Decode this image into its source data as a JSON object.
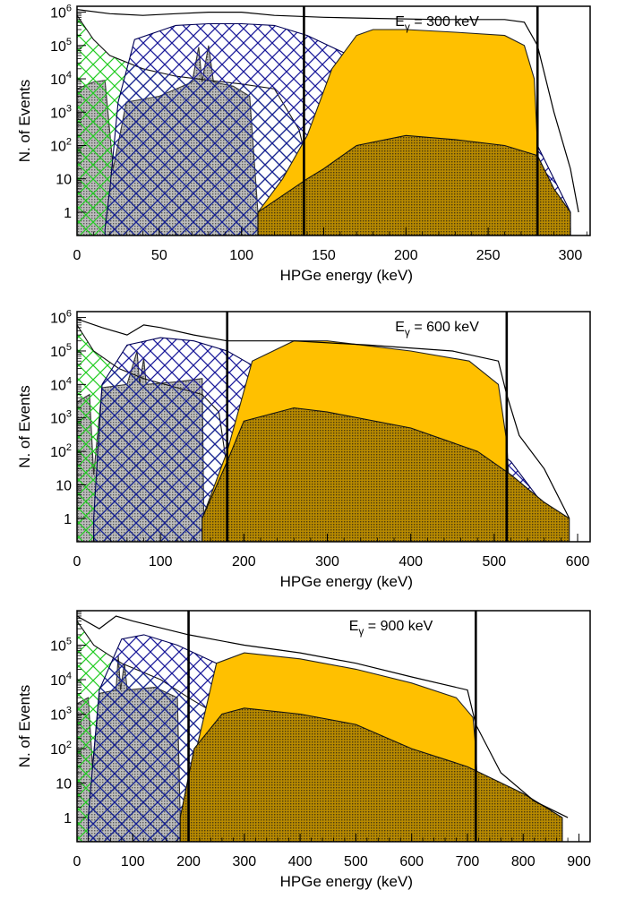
{
  "chart_data": [
    {
      "type": "area",
      "annotation": "E",
      "annotation_sub": "γ",
      "annotation_value": " = 300 keV",
      "xlabel": "HPGe energy (keV)",
      "ylabel": "N. of Events",
      "xlim": [
        0,
        312
      ],
      "ylog": true,
      "ylim": [
        0.2,
        1500000
      ],
      "x_ticks": [
        0,
        50,
        100,
        150,
        200,
        250,
        300
      ],
      "y_ticks": [
        1,
        10,
        100,
        1000,
        10000,
        100000,
        1000000
      ],
      "y_tick_labels": [
        {
          "base": "1",
          "exp": ""
        },
        {
          "base": "10",
          "exp": ""
        },
        {
          "base": "10",
          "exp": "2"
        },
        {
          "base": "10",
          "exp": "3"
        },
        {
          "base": "10",
          "exp": "4"
        },
        {
          "base": "10",
          "exp": "5"
        },
        {
          "base": "10",
          "exp": "6"
        }
      ],
      "vertical_lines": [
        138,
        280
      ],
      "series": [
        {
          "values": [
            [
              0,
              5000
            ],
            [
              10,
              8000
            ],
            [
              17,
              9000
            ],
            [
              22,
              20
            ],
            [
              30,
              2000
            ],
            [
              50,
              3000
            ],
            [
              70,
              8000
            ],
            [
              74,
              90000
            ],
            [
              76,
              8000
            ],
            [
              80,
              100000
            ],
            [
              83,
              8000
            ],
            [
              95,
              6000
            ],
            [
              105,
              3000
            ],
            [
              110,
              1
            ]
          ],
          "color": "#8c8c8c",
          "hatch": "dots"
        },
        {
          "values": [
            [
              0,
              800000
            ],
            [
              10,
              150000
            ],
            [
              20,
              50000
            ],
            [
              40,
              20000
            ],
            [
              60,
              12000
            ],
            [
              80,
              9000
            ],
            [
              100,
              7000
            ],
            [
              120,
              5000
            ],
            [
              135,
              300
            ],
            [
              140,
              30
            ],
            [
              160,
              5
            ],
            [
              200,
              5
            ],
            [
              240,
              3
            ],
            [
              270,
              2
            ],
            [
              290,
              1
            ]
          ],
          "color": "#22cc22",
          "hatch": "cross"
        },
        {
          "values": [
            [
              17,
              0.3
            ],
            [
              20,
              5
            ],
            [
              25,
              2000
            ],
            [
              35,
              150000
            ],
            [
              60,
              400000
            ],
            [
              80,
              450000
            ],
            [
              100,
              450000
            ],
            [
              120,
              400000
            ],
            [
              140,
              200000
            ],
            [
              170,
              40000
            ],
            [
              200,
              15000
            ],
            [
              240,
              5000
            ],
            [
              270,
              1000
            ],
            [
              280,
              100
            ],
            [
              290,
              10
            ],
            [
              300,
              1
            ]
          ],
          "color": "#1a1a9a",
          "hatch": "cross"
        },
        {
          "values": [
            [
              110,
              1
            ],
            [
              125,
              10
            ],
            [
              140,
              200
            ],
            [
              155,
              20000
            ],
            [
              170,
              200000
            ],
            [
              180,
              300000
            ],
            [
              200,
              300000
            ],
            [
              230,
              250000
            ],
            [
              260,
              200000
            ],
            [
              272,
              100000
            ],
            [
              278,
              10000
            ],
            [
              282,
              1
            ]
          ],
          "color": "#ffc000",
          "hatch": "none"
        },
        {
          "values": [
            [
              110,
              1
            ],
            [
              140,
              10
            ],
            [
              150,
              20
            ],
            [
              170,
              100
            ],
            [
              200,
              200
            ],
            [
              230,
              150
            ],
            [
              260,
              100
            ],
            [
              280,
              50
            ],
            [
              290,
              5
            ],
            [
              300,
              1
            ]
          ],
          "color": "#8a6a00",
          "hatch": "dots"
        }
      ],
      "total_envelope": [
        [
          0,
          1200000
        ],
        [
          20,
          900000
        ],
        [
          40,
          800000
        ],
        [
          60,
          900000
        ],
        [
          80,
          1000000
        ],
        [
          100,
          1000000
        ],
        [
          120,
          800000
        ],
        [
          150,
          700000
        ],
        [
          180,
          650000
        ],
        [
          220,
          600000
        ],
        [
          260,
          600000
        ],
        [
          272,
          500000
        ],
        [
          280,
          100000
        ],
        [
          290,
          1000
        ],
        [
          300,
          20
        ],
        [
          305,
          1
        ]
      ]
    },
    {
      "type": "area",
      "annotation": "E",
      "annotation_sub": "γ",
      "annotation_value": " = 600 keV",
      "xlabel": "HPGe energy (keV)",
      "ylabel": "N. of Events",
      "xlim": [
        0,
        615
      ],
      "ylog": true,
      "ylim": [
        0.2,
        1500000
      ],
      "x_ticks": [
        0,
        100,
        200,
        300,
        400,
        500,
        600
      ],
      "y_ticks": [
        1,
        10,
        100,
        1000,
        10000,
        100000,
        1000000
      ],
      "y_tick_labels": [
        {
          "base": "1",
          "exp": ""
        },
        {
          "base": "10",
          "exp": ""
        },
        {
          "base": "10",
          "exp": "2"
        },
        {
          "base": "10",
          "exp": "3"
        },
        {
          "base": "10",
          "exp": "4"
        },
        {
          "base": "10",
          "exp": "5"
        },
        {
          "base": "10",
          "exp": "6"
        }
      ],
      "vertical_lines": [
        180,
        515
      ],
      "series": [
        {
          "values": [
            [
              0,
              3000
            ],
            [
              15,
              5000
            ],
            [
              20,
              20
            ],
            [
              30,
              8000
            ],
            [
              60,
              10000
            ],
            [
              72,
              100000
            ],
            [
              75,
              10000
            ],
            [
              80,
              60000
            ],
            [
              83,
              10000
            ],
            [
              120,
              12000
            ],
            [
              150,
              15000
            ],
            [
              152,
              1
            ]
          ],
          "color": "#8c8c8c",
          "hatch": "dots"
        },
        {
          "values": [
            [
              0,
              600000
            ],
            [
              20,
              100000
            ],
            [
              50,
              30000
            ],
            [
              80,
              15000
            ],
            [
              120,
              8000
            ],
            [
              150,
              5000
            ],
            [
              170,
              1500
            ],
            [
              180,
              30
            ],
            [
              200,
              5
            ],
            [
              300,
              3
            ],
            [
              500,
              1
            ]
          ],
          "color": "#22cc22",
          "hatch": "cross"
        },
        {
          "values": [
            [
              20,
              1
            ],
            [
              30,
              10000
            ],
            [
              60,
              150000
            ],
            [
              100,
              250000
            ],
            [
              140,
              200000
            ],
            [
              180,
              100000
            ],
            [
              250,
              10000
            ],
            [
              300,
              4000
            ],
            [
              400,
              1000
            ],
            [
              480,
              300
            ],
            [
              520,
              50
            ],
            [
              550,
              5
            ],
            [
              570,
              1
            ]
          ],
          "color": "#1a1a9a",
          "hatch": "cross"
        },
        {
          "values": [
            [
              150,
              1
            ],
            [
              180,
              100
            ],
            [
              210,
              50000
            ],
            [
              260,
              200000
            ],
            [
              300,
              200000
            ],
            [
              400,
              100000
            ],
            [
              470,
              50000
            ],
            [
              505,
              10000
            ],
            [
              515,
              200
            ],
            [
              520,
              1
            ]
          ],
          "color": "#ffc000",
          "hatch": "none"
        },
        {
          "values": [
            [
              150,
              1
            ],
            [
              180,
              50
            ],
            [
              200,
              800
            ],
            [
              260,
              2000
            ],
            [
              300,
              1500
            ],
            [
              400,
              500
            ],
            [
              480,
              100
            ],
            [
              520,
              20
            ],
            [
              560,
              3
            ],
            [
              590,
              1
            ]
          ],
          "color": "#8a6a00",
          "hatch": "dots"
        }
      ],
      "total_envelope": [
        [
          0,
          900000
        ],
        [
          30,
          500000
        ],
        [
          60,
          300000
        ],
        [
          80,
          600000
        ],
        [
          100,
          500000
        ],
        [
          140,
          300000
        ],
        [
          180,
          200000
        ],
        [
          260,
          200000
        ],
        [
          350,
          150000
        ],
        [
          450,
          100000
        ],
        [
          505,
          50000
        ],
        [
          515,
          5000
        ],
        [
          530,
          300
        ],
        [
          560,
          30
        ],
        [
          590,
          1
        ]
      ]
    },
    {
      "type": "area",
      "annotation": "E",
      "annotation_sub": "γ",
      "annotation_value": " = 900 keV",
      "xlabel": "HPGe energy (keV)",
      "ylabel": "N. of Events",
      "xlim": [
        0,
        920
      ],
      "ylog": true,
      "ylim": [
        0.2,
        1000000
      ],
      "x_ticks": [
        0,
        100,
        200,
        300,
        400,
        500,
        600,
        700,
        800,
        900
      ],
      "y_ticks": [
        1,
        10,
        100,
        1000,
        10000,
        100000
      ],
      "y_tick_labels": [
        {
          "base": "1",
          "exp": ""
        },
        {
          "base": "10",
          "exp": ""
        },
        {
          "base": "10",
          "exp": "2"
        },
        {
          "base": "10",
          "exp": "3"
        },
        {
          "base": "10",
          "exp": "4"
        },
        {
          "base": "10",
          "exp": "5"
        }
      ],
      "vertical_lines": [
        200,
        715
      ],
      "series": [
        {
          "values": [
            [
              0,
              2000
            ],
            [
              20,
              3000
            ],
            [
              28,
              30
            ],
            [
              40,
              4000
            ],
            [
              70,
              5000
            ],
            [
              74,
              50000
            ],
            [
              78,
              5000
            ],
            [
              85,
              30000
            ],
            [
              90,
              5000
            ],
            [
              140,
              6000
            ],
            [
              180,
              3000
            ],
            [
              185,
              1
            ]
          ],
          "color": "#8c8c8c",
          "hatch": "dots"
        },
        {
          "values": [
            [
              0,
              500000
            ],
            [
              30,
              100000
            ],
            [
              80,
              30000
            ],
            [
              150,
              10000
            ],
            [
              200,
              3000
            ],
            [
              260,
              800
            ],
            [
              300,
              300
            ],
            [
              400,
              100
            ],
            [
              600,
              10
            ],
            [
              800,
              1
            ]
          ],
          "color": "#22cc22",
          "hatch": "cross"
        },
        {
          "values": [
            [
              20,
              1
            ],
            [
              40,
              5000
            ],
            [
              80,
              150000
            ],
            [
              120,
              200000
            ],
            [
              180,
              100000
            ],
            [
              250,
              30000
            ],
            [
              350,
              5000
            ],
            [
              450,
              1000
            ],
            [
              550,
              300
            ],
            [
              650,
              50
            ],
            [
              720,
              10
            ],
            [
              780,
              1
            ]
          ],
          "color": "#1a1a9a",
          "hatch": "cross"
        },
        {
          "values": [
            [
              185,
              1
            ],
            [
              210,
              50
            ],
            [
              250,
              30000
            ],
            [
              300,
              60000
            ],
            [
              400,
              40000
            ],
            [
              500,
              20000
            ],
            [
              600,
              8000
            ],
            [
              680,
              3000
            ],
            [
              710,
              800
            ],
            [
              715,
              100
            ],
            [
              720,
              1
            ]
          ],
          "color": "#ffc000",
          "hatch": "none"
        },
        {
          "values": [
            [
              185,
              1
            ],
            [
              210,
              100
            ],
            [
              260,
              1000
            ],
            [
              300,
              1500
            ],
            [
              400,
              1000
            ],
            [
              500,
              500
            ],
            [
              600,
              100
            ],
            [
              700,
              30
            ],
            [
              800,
              5
            ],
            [
              870,
              1
            ]
          ],
          "color": "#8a6a00",
          "hatch": "dots"
        }
      ],
      "total_envelope": [
        [
          0,
          700000
        ],
        [
          40,
          300000
        ],
        [
          70,
          700000
        ],
        [
          100,
          500000
        ],
        [
          200,
          200000
        ],
        [
          300,
          100000
        ],
        [
          400,
          60000
        ],
        [
          500,
          30000
        ],
        [
          600,
          12000
        ],
        [
          700,
          5000
        ],
        [
          715,
          500
        ],
        [
          760,
          20
        ],
        [
          820,
          3
        ],
        [
          880,
          1
        ]
      ]
    }
  ]
}
